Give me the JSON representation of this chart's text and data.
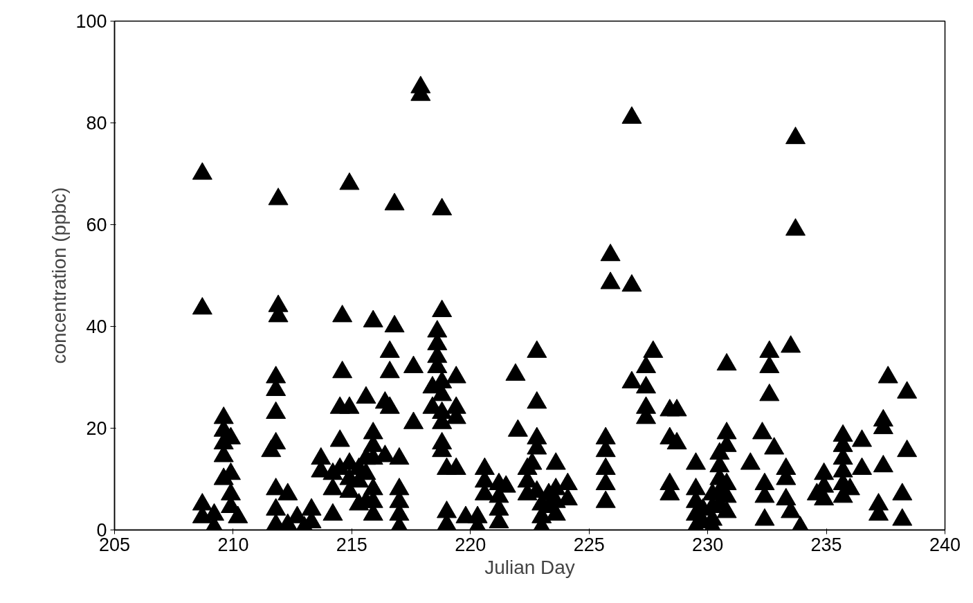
{
  "chart_data": {
    "type": "scatter",
    "xlabel": "Julian Day",
    "ylabel": "concentration (ppbc)",
    "xlim": [
      205,
      240
    ],
    "xticks": [
      205,
      210,
      215,
      220,
      225,
      230,
      235,
      240
    ],
    "ylim": [
      0,
      100
    ],
    "yticks": [
      0,
      20,
      40,
      60,
      80,
      100
    ],
    "grid": false,
    "marker": "triangle",
    "series": [
      {
        "color": "#000000",
        "x": [
          208.7,
          208.7,
          208.7,
          208.7,
          209.2,
          209.2,
          209.6,
          209.6,
          209.6,
          209.6,
          209.6,
          209.9,
          209.9,
          209.9,
          209.9,
          210.2,
          211.6,
          211.8,
          211.8,
          211.8,
          211.8,
          211.8,
          211.8,
          211.8,
          211.9,
          211.9,
          211.9,
          212.3,
          212.3,
          212.7,
          213.0,
          213.3,
          213.3,
          213.7,
          213.7,
          214.2,
          214.2,
          214.2,
          214.5,
          214.5,
          214.5,
          214.6,
          214.6,
          214.9,
          214.9,
          214.9,
          214.9,
          214.9,
          215.3,
          215.3,
          215.3,
          215.6,
          215.6,
          215.6,
          215.6,
          215.9,
          215.9,
          215.9,
          215.9,
          215.9,
          215.9,
          215.9,
          216.4,
          216.4,
          216.6,
          216.6,
          216.6,
          216.8,
          216.8,
          217.0,
          217.0,
          217.0,
          217.0,
          217.0,
          217.6,
          217.6,
          217.9,
          217.9,
          218.4,
          218.4,
          218.6,
          218.6,
          218.6,
          218.6,
          218.8,
          218.8,
          218.8,
          218.8,
          218.8,
          218.8,
          218.8,
          218.8,
          219.0,
          219.0,
          219.0,
          219.4,
          219.4,
          219.4,
          219.4,
          219.8,
          220.3,
          220.3,
          220.6,
          220.6,
          220.6,
          221.2,
          221.2,
          221.2,
          221.2,
          221.5,
          221.9,
          222.0,
          222.4,
          222.4,
          222.4,
          222.6,
          222.8,
          222.8,
          222.8,
          222.8,
          222.8,
          223.0,
          223.0,
          223.0,
          223.3,
          223.3,
          223.6,
          223.6,
          223.6,
          223.6,
          224.1,
          224.1,
          225.7,
          225.7,
          225.7,
          225.7,
          225.7,
          225.9,
          225.9,
          226.8,
          226.8,
          226.8,
          227.4,
          227.4,
          227.4,
          227.4,
          227.7,
          228.4,
          228.4,
          228.4,
          228.4,
          228.7,
          228.7,
          229.5,
          229.5,
          229.5,
          229.5,
          229.5,
          229.8,
          229.8,
          230.2,
          230.2,
          230.2,
          230.2,
          230.5,
          230.5,
          230.5,
          230.5,
          230.5,
          230.8,
          230.8,
          230.8,
          230.8,
          230.8,
          230.8,
          231.8,
          232.3,
          232.4,
          232.4,
          232.4,
          232.6,
          232.6,
          232.6,
          232.8,
          233.3,
          233.3,
          233.3,
          233.5,
          233.5,
          233.7,
          233.7,
          233.9,
          234.6,
          234.9,
          234.9,
          234.9,
          235.7,
          235.7,
          235.7,
          235.7,
          235.7,
          235.7,
          236.0,
          236.5,
          236.5,
          237.2,
          237.2,
          237.4,
          237.4,
          237.4,
          237.6,
          238.2,
          238.2,
          238.4,
          238.4
        ],
        "values": [
          70,
          43.5,
          5,
          2.5,
          3,
          0.5,
          22,
          19.5,
          17,
          14.5,
          10,
          18,
          11,
          7,
          4.5,
          2.5,
          15.5,
          30,
          27.5,
          23,
          17,
          8,
          4,
          1,
          65,
          44,
          42,
          7,
          1,
          2.5,
          0.5,
          4,
          1.5,
          14,
          11.5,
          11,
          8,
          3,
          17.5,
          12,
          24,
          31,
          42,
          68,
          24,
          13,
          10,
          7.5,
          12,
          9.5,
          5,
          26,
          14,
          11,
          5.5,
          41,
          19,
          16.5,
          14,
          8,
          5.5,
          3,
          25,
          14.5,
          35,
          31,
          24,
          64,
          40,
          14,
          8,
          5.5,
          3,
          0.5,
          21,
          32,
          87,
          85.5,
          28,
          24,
          39,
          36.5,
          34,
          32,
          63,
          43,
          29,
          26.5,
          23,
          21,
          17,
          15.5,
          12,
          3.5,
          1,
          30,
          24,
          22,
          12,
          2.5,
          2.5,
          0.5,
          12,
          9.5,
          7,
          9,
          6.5,
          4,
          1.5,
          8.5,
          30.5,
          19.5,
          12,
          9.5,
          7,
          13,
          35,
          25,
          18,
          16,
          7.5,
          5,
          2.5,
          0.5,
          7,
          4.5,
          13,
          8,
          5.5,
          3,
          9,
          6,
          5.5,
          9,
          12,
          15.5,
          18,
          54,
          48.5,
          81,
          48,
          29,
          32,
          28,
          24,
          22,
          35,
          23.5,
          18,
          9,
          7,
          23.5,
          17,
          13,
          8,
          5.5,
          3,
          0.5,
          4,
          1.5,
          7,
          4.5,
          2,
          0.5,
          15,
          12.5,
          10,
          7.5,
          5,
          32.5,
          19,
          16.5,
          9,
          6.5,
          3.5,
          13,
          19,
          9,
          6.5,
          2,
          35,
          32,
          26.5,
          16,
          12,
          10,
          6,
          36,
          3.5,
          77,
          59,
          0.5,
          7,
          11,
          8.5,
          6,
          18.5,
          16.5,
          14,
          11.5,
          9,
          6.5,
          8,
          17.5,
          12,
          5,
          3,
          21.5,
          20,
          12.5,
          30,
          7,
          2,
          27,
          15.5
        ]
      }
    ]
  }
}
